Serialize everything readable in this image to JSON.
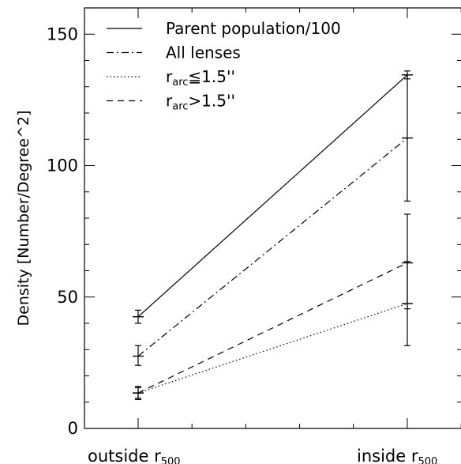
{
  "chart_data": {
    "type": "line",
    "ylabel": "Density [Number/Degree^2]",
    "xlabel": "",
    "ylim": [
      0,
      160
    ],
    "y_ticks": [
      0,
      50,
      100,
      150
    ],
    "x_categories": [
      {
        "main": "outside r",
        "sub": "500"
      },
      {
        "main": "inside r",
        "sub": "500"
      }
    ],
    "grid": false,
    "legend_position": "top-left",
    "series": [
      {
        "name": "Parent population/100",
        "dash": "solid",
        "values": [
          42.5,
          134.5
        ],
        "errors": [
          [
            40.0,
            45.0
          ],
          [
            133.0,
            136.0
          ]
        ]
      },
      {
        "name": "All lenses",
        "dash": "dashdot",
        "values": [
          27.5,
          110.5
        ],
        "errors": [
          [
            24.0,
            31.5
          ],
          [
            86.5,
            134.5
          ]
        ]
      },
      {
        "name_main": "r",
        "name_sub": "arc",
        "name_suffix": "≦1.5''",
        "dash": "dotted",
        "values": [
          13.5,
          47.5
        ],
        "errors": [
          [
            11.0,
            16.0
          ],
          [
            31.5,
            63.5
          ]
        ]
      },
      {
        "name_main": "r",
        "name_sub": "arc",
        "name_suffix": ">1.5''",
        "dash": "dashed",
        "values": [
          13.5,
          63.0
        ],
        "errors": [
          [
            11.5,
            15.5
          ],
          [
            45.5,
            81.5
          ]
        ]
      }
    ]
  }
}
